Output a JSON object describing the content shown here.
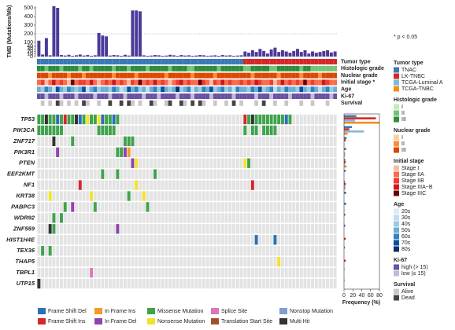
{
  "chart_data": {
    "type": "oncoprint",
    "note": "* p < 0.05",
    "tmb": {
      "label": "TMB (Mutations/Mb)",
      "color": "#4b3a9a",
      "ylim": [
        0,
        500
      ],
      "yticks": [
        0,
        10,
        20,
        30,
        40,
        100,
        200,
        300,
        400,
        500
      ],
      "values": [
        120,
        8,
        150,
        5,
        520,
        500,
        6,
        4,
        7,
        3,
        5,
        8,
        4,
        6,
        3,
        5,
        210,
        180,
        170,
        4,
        6,
        5,
        3,
        7,
        4,
        470,
        470,
        460,
        5,
        3,
        4,
        6,
        5,
        3,
        4,
        7,
        5,
        3,
        6,
        4,
        5,
        3,
        4,
        6,
        5,
        3,
        4,
        5,
        3,
        6,
        4,
        5,
        3,
        4,
        5,
        20,
        15,
        25,
        18,
        30,
        22,
        12,
        28,
        35,
        18,
        25,
        20,
        15,
        22,
        30,
        18,
        25,
        12,
        20,
        15,
        18,
        22,
        25,
        16,
        20
      ]
    },
    "tracks": [
      {
        "name": "Tumor type",
        "values": [
          0,
          0,
          0,
          0,
          0,
          0,
          0,
          0,
          0,
          0,
          0,
          0,
          0,
          0,
          0,
          0,
          0,
          0,
          0,
          0,
          0,
          0,
          0,
          0,
          0,
          0,
          0,
          0,
          0,
          0,
          0,
          0,
          0,
          0,
          0,
          0,
          0,
          0,
          0,
          0,
          0,
          0,
          0,
          0,
          0,
          0,
          0,
          0,
          0,
          0,
          0,
          0,
          0,
          0,
          0,
          1,
          1,
          1,
          1,
          1,
          1,
          1,
          1,
          1,
          1,
          1,
          1,
          1,
          1,
          1,
          1,
          1,
          1,
          1,
          1,
          1,
          1,
          1,
          1,
          1
        ]
      },
      {
        "name": "Histologic grade",
        "levels": [
          "I",
          "II",
          "III"
        ],
        "colors": [
          "#c7e9c0",
          "#74c476",
          "#2e8b3e"
        ],
        "values": [
          2,
          2,
          1,
          2,
          2,
          2,
          1,
          2,
          2,
          2,
          2,
          1,
          2,
          2,
          1,
          2,
          2,
          2,
          2,
          2,
          1,
          2,
          2,
          2,
          1,
          2,
          2,
          2,
          2,
          1,
          2,
          2,
          2,
          2,
          2,
          1,
          2,
          2,
          2,
          2,
          1,
          1,
          2,
          2,
          2,
          2,
          2,
          2,
          1,
          2,
          2,
          2,
          2,
          2,
          2,
          1,
          1,
          2,
          2,
          2,
          2,
          2,
          1,
          1,
          2,
          2,
          2,
          2,
          2,
          2,
          1,
          2,
          2,
          1,
          1,
          1,
          1,
          1,
          1,
          1
        ]
      },
      {
        "name": "Nuclear grade",
        "levels": [
          "I",
          "II",
          "III"
        ],
        "colors": [
          "#fdd0a2",
          "#fd8d3c",
          "#d94801"
        ],
        "values": [
          2,
          2,
          2,
          1,
          2,
          2,
          2,
          2,
          1,
          2,
          2,
          2,
          1,
          2,
          2,
          2,
          2,
          2,
          2,
          2,
          1,
          2,
          2,
          2,
          2,
          2,
          1,
          2,
          2,
          2,
          2,
          2,
          2,
          2,
          1,
          2,
          2,
          2,
          2,
          2,
          2,
          1,
          2,
          2,
          2,
          2,
          2,
          1,
          2,
          2,
          2,
          2,
          2,
          2,
          2,
          2,
          2,
          1,
          2,
          2,
          2,
          2,
          2,
          2,
          1,
          2,
          2,
          2,
          2,
          2,
          1,
          2,
          2,
          2,
          2,
          1,
          2,
          2,
          2,
          2
        ]
      },
      {
        "name": "Initial stage *",
        "legend_title": "Initial stage",
        "levels": [
          "Stage I",
          "Stage IIA",
          "Stage IIB",
          "Stage IIIA~B",
          "Stage IIIC"
        ],
        "colors": [
          "#fcbba1",
          "#fb6a4a",
          "#ef3b2c",
          "#cb181d",
          "#67000d"
        ],
        "values": [
          1,
          2,
          0,
          1,
          3,
          1,
          2,
          1,
          0,
          4,
          1,
          2,
          2,
          1,
          3,
          1,
          0,
          1,
          2,
          1,
          3,
          1,
          2,
          1,
          0,
          2,
          1,
          4,
          1,
          2,
          1,
          3,
          1,
          2,
          1,
          0,
          1,
          2,
          3,
          1,
          2,
          1,
          1,
          4,
          2,
          1,
          0,
          2,
          1,
          3,
          1,
          2,
          1,
          1,
          2,
          1,
          2,
          1,
          3,
          2,
          1,
          1,
          2,
          0,
          1,
          3,
          1,
          2,
          1,
          2,
          1,
          4,
          1,
          2,
          1,
          1,
          3,
          2,
          1,
          1
        ]
      },
      {
        "name": "Age",
        "levels": [
          "20s",
          "30s",
          "40s",
          "50s",
          "60s",
          "70s",
          "80s"
        ],
        "colors": [
          "#deebf7",
          "#c6dbef",
          "#9ecae1",
          "#6baed6",
          "#3182bd",
          "#08519c",
          "#08306b"
        ],
        "values": [
          3,
          2,
          4,
          3,
          1,
          5,
          3,
          2,
          4,
          3,
          2,
          3,
          5,
          1,
          3,
          4,
          2,
          3,
          3,
          2,
          4,
          3,
          1,
          2,
          5,
          3,
          4,
          2,
          3,
          1,
          3,
          4,
          2,
          5,
          3,
          2,
          3,
          6,
          2,
          3,
          4,
          1,
          3,
          2,
          4,
          3,
          5,
          2,
          3,
          4,
          2,
          3,
          1,
          4,
          3,
          3,
          2,
          4,
          3,
          5,
          2,
          3,
          4,
          1,
          3,
          2,
          4,
          3,
          3,
          2,
          5,
          3,
          2,
          4,
          3,
          1,
          3,
          4,
          2,
          3
        ]
      },
      {
        "name": "Ki-67",
        "levels": [
          "high (> 15)",
          "low (≤ 15)"
        ],
        "colors": [
          "#6a51a3",
          "#bcbddc"
        ],
        "values": [
          0,
          0,
          1,
          0,
          0,
          0,
          1,
          0,
          0,
          0,
          1,
          0,
          0,
          0,
          0,
          1,
          0,
          0,
          0,
          1,
          0,
          0,
          0,
          1,
          0,
          0,
          0,
          0,
          1,
          0,
          0,
          0,
          1,
          0,
          0,
          0,
          0,
          1,
          0,
          0,
          0,
          1,
          0,
          0,
          0,
          0,
          1,
          0,
          0,
          0,
          0,
          0,
          1,
          0,
          0,
          0,
          0,
          0,
          1,
          0,
          0,
          0,
          1,
          0,
          0,
          0,
          0,
          1,
          0,
          0,
          0,
          0,
          0,
          1,
          0,
          0,
          0,
          0,
          1,
          0
        ]
      },
      {
        "name": "Survival",
        "levels": [
          "Alive",
          "Dead"
        ],
        "colors": [
          "#c8c8c8",
          "#444444"
        ],
        "values": [
          null,
          0,
          null,
          0,
          null,
          1,
          0,
          null,
          0,
          null,
          0,
          null,
          1,
          0,
          null,
          null,
          0,
          null,
          null,
          1,
          null,
          null,
          1,
          null,
          1,
          0,
          null,
          0,
          null,
          null,
          1,
          0,
          null,
          null,
          0,
          1,
          null,
          null,
          1,
          0,
          null,
          1,
          null,
          1,
          0,
          null,
          null,
          0,
          null,
          null,
          0,
          null,
          1,
          null,
          0,
          null,
          null,
          null,
          0,
          null,
          1,
          null,
          null,
          0,
          null,
          null,
          0,
          null,
          null,
          null,
          0,
          null,
          null,
          0,
          null,
          null,
          null,
          0,
          null,
          null
        ]
      }
    ],
    "mutation_types": [
      {
        "name": "Frame Shift Del",
        "color": "#2e6fb5"
      },
      {
        "name": "Frame Shift Ins",
        "color": "#d7262b"
      },
      {
        "name": "In Frame Ins",
        "color": "#f39a2a"
      },
      {
        "name": "In Frame Del",
        "color": "#8e44ad"
      },
      {
        "name": "Missense Mutation",
        "color": "#3fa34d"
      },
      {
        "name": "Nonsense Mutation",
        "color": "#f1e32c"
      },
      {
        "name": "Splice Site",
        "color": "#d97ab5"
      },
      {
        "name": "Translation Start Site",
        "color": "#a0522d"
      },
      {
        "name": "Nonstop Mutation",
        "color": "#7fa0c8"
      },
      {
        "name": "Multi Hit",
        "color": "#333333"
      }
    ],
    "genes": [
      {
        "name": "TP53",
        "samples": [
          0,
          1,
          2,
          3,
          4,
          5,
          6,
          7,
          8,
          9,
          10,
          11,
          12,
          13,
          14,
          15,
          16,
          17,
          18,
          19,
          20,
          21,
          55,
          56,
          57,
          58,
          59,
          60,
          61,
          62,
          63,
          64,
          65,
          66,
          67
        ],
        "types": [
          4,
          4,
          9,
          4,
          4,
          0,
          4,
          1,
          4,
          4,
          9,
          0,
          4,
          5,
          4,
          4,
          5,
          0,
          4,
          4,
          0,
          4,
          1,
          4,
          9,
          4,
          4,
          4,
          4,
          4,
          4,
          4,
          4,
          0,
          4
        ]
      },
      {
        "name": "PIK3CA",
        "samples": [
          0,
          1,
          2,
          3,
          4,
          5,
          6,
          16,
          17,
          18,
          19,
          20,
          55,
          57,
          58,
          60,
          61,
          62,
          63
        ],
        "types": [
          4,
          4,
          4,
          4,
          4,
          4,
          4,
          4,
          4,
          4,
          4,
          4,
          4,
          4,
          4,
          4,
          4,
          4,
          4
        ]
      },
      {
        "name": "ZNF717",
        "samples": [
          4,
          9,
          23,
          24,
          25
        ],
        "types": [
          9,
          4,
          4,
          4,
          4
        ]
      },
      {
        "name": "PIK3R1",
        "samples": [
          5,
          21,
          22,
          23,
          24
        ],
        "types": [
          3,
          4,
          4,
          3,
          2
        ]
      },
      {
        "name": "PTEN",
        "samples": [
          25,
          26,
          55,
          56
        ],
        "types": [
          3,
          5,
          5,
          4
        ]
      },
      {
        "name": "EEF2KMT",
        "samples": [
          17,
          21,
          31
        ],
        "types": [
          4,
          4,
          4
        ]
      },
      {
        "name": "NF1",
        "samples": [
          11,
          26,
          57
        ],
        "types": [
          1,
          5,
          1
        ]
      },
      {
        "name": "KRT38",
        "samples": [
          3,
          14,
          24,
          28
        ],
        "types": [
          5,
          5,
          4,
          5
        ]
      },
      {
        "name": "PABPC3",
        "samples": [
          7,
          9,
          15,
          29
        ],
        "types": [
          4,
          3,
          4,
          4
        ]
      },
      {
        "name": "WDR92",
        "samples": [
          4,
          6
        ],
        "types": [
          4,
          4
        ]
      },
      {
        "name": "ZNF559",
        "samples": [
          3,
          4,
          21
        ],
        "types": [
          9,
          4,
          3
        ]
      },
      {
        "name": "HIST1H4E",
        "samples": [
          58,
          63
        ],
        "types": [
          0,
          0
        ]
      },
      {
        "name": "TEX36",
        "samples": [
          1,
          3
        ],
        "types": [
          4,
          4
        ]
      },
      {
        "name": "THAP5",
        "samples": [
          64
        ],
        "types": [
          5
        ]
      },
      {
        "name": "TBPL1",
        "samples": [
          14
        ],
        "types": [
          6
        ]
      },
      {
        "name": "UTP15",
        "samples": [
          0
        ],
        "types": [
          9
        ]
      }
    ],
    "frequency": {
      "xlabel": "Frequency (%)",
      "xlim": [
        0,
        80
      ],
      "xticks": [
        0,
        20,
        40,
        60,
        80
      ],
      "series": [
        {
          "name": "TNAC",
          "color": "#3b78b8",
          "values": [
            28,
            18,
            6,
            5,
            3,
            4,
            2,
            5,
            5,
            3,
            3,
            0,
            2,
            0,
            1,
            1
          ]
        },
        {
          "name": "LK-TNBC",
          "color": "#d62728",
          "values": [
            72,
            12,
            4,
            0,
            4,
            0,
            4,
            0,
            0,
            0,
            0,
            4,
            0,
            4,
            0,
            0
          ]
        },
        {
          "name": "TCGA-Luminal A",
          "color": "#7fb8e0",
          "values": [
            25,
            45,
            0,
            3,
            2,
            0,
            3,
            0,
            0,
            0,
            0,
            0,
            0,
            0,
            0,
            0
          ]
        },
        {
          "name": "TCGA-TNBC",
          "color": "#f28e1c",
          "values": [
            80,
            8,
            1,
            2,
            6,
            0,
            3,
            0,
            1,
            0,
            0,
            0,
            0,
            0,
            0,
            0
          ]
        }
      ]
    }
  }
}
